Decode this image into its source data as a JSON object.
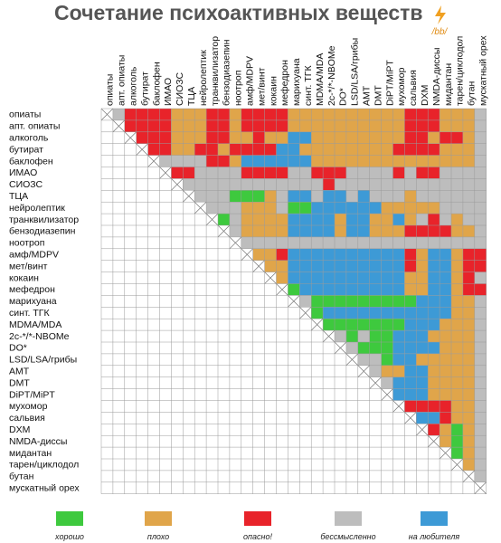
{
  "title": "Сочетание психоактивных веществ",
  "logo": "/bb/",
  "substances": [
    "опиаты",
    "апт. опиаты",
    "алкоголь",
    "бутират",
    "баклофен",
    "ИМАО",
    "СИОЗС",
    "ТЦА",
    "нейролептик",
    "транквилизатор",
    "бензодиазепин",
    "ноотроп",
    "амф/MDPV",
    "мет/винт",
    "кокаин",
    "мефедрон",
    "марихуана",
    "синт. ТГК",
    "MDMA/MDA",
    "2c-*/*-NBOMe",
    "DO*",
    "LSD/LSA/грибы",
    "AMT",
    "DMT",
    "DiPT/MiPT",
    "мухомор",
    "сальвия",
    "DXM",
    "NMDA-диссы",
    "мидантан",
    "тарен/циклодол",
    "бутан",
    "мускатный орех"
  ],
  "legend": [
    {
      "label": "хорошо",
      "color": "#3ec93e"
    },
    {
      "label": "плохо",
      "color": "#e0a54a"
    },
    {
      "label": "опасно!",
      "color": "#e8232a"
    },
    {
      "label": "бессмысленно",
      "color": "#bdbdbd"
    },
    {
      "label": "на любителя",
      "color": "#3d9ad6"
    }
  ],
  "matrix": [
    [
      3,
      2,
      2,
      2,
      2,
      1,
      1,
      1,
      2,
      2,
      1,
      2,
      2,
      2,
      2,
      1,
      1,
      1,
      1,
      1,
      1,
      1,
      1,
      1,
      1,
      2,
      2,
      2,
      1,
      1,
      1,
      3
    ],
    [
      2,
      2,
      2,
      2,
      1,
      1,
      1,
      2,
      2,
      1,
      2,
      2,
      2,
      2,
      1,
      1,
      1,
      1,
      1,
      1,
      1,
      1,
      1,
      1,
      2,
      2,
      2,
      1,
      1,
      1,
      3
    ],
    [
      2,
      2,
      2,
      1,
      1,
      1,
      2,
      2,
      1,
      1,
      2,
      1,
      1,
      4,
      4,
      1,
      1,
      1,
      1,
      1,
      1,
      1,
      1,
      2,
      2,
      1,
      2,
      2,
      1,
      3
    ],
    [
      2,
      2,
      1,
      1,
      2,
      2,
      1,
      2,
      2,
      2,
      2,
      4,
      4,
      1,
      1,
      1,
      1,
      1,
      1,
      1,
      1,
      2,
      2,
      2,
      2,
      1,
      1,
      1,
      3
    ],
    [
      3,
      3,
      3,
      3,
      2,
      2,
      1,
      4,
      4,
      4,
      4,
      4,
      4,
      1,
      1,
      1,
      1,
      1,
      1,
      1,
      1,
      1,
      1,
      1,
      1,
      1,
      1,
      3
    ],
    [
      2,
      2,
      3,
      3,
      3,
      3,
      2,
      2,
      2,
      2,
      3,
      3,
      2,
      2,
      2,
      3,
      3,
      3,
      3,
      2,
      3,
      2,
      2,
      3,
      3,
      3,
      3
    ],
    [
      3,
      3,
      3,
      3,
      3,
      3,
      3,
      3,
      3,
      3,
      3,
      3,
      2,
      3,
      3,
      3,
      3,
      3,
      3,
      3,
      3,
      3,
      3,
      3,
      3,
      3
    ],
    [
      3,
      3,
      3,
      0,
      0,
      0,
      1,
      3,
      4,
      4,
      3,
      4,
      4,
      3,
      4,
      3,
      3,
      3,
      1,
      3,
      3,
      3,
      3,
      3,
      3
    ],
    [
      3,
      3,
      3,
      1,
      1,
      1,
      3,
      0,
      0,
      4,
      4,
      4,
      4,
      4,
      4,
      1,
      1,
      1,
      1,
      1,
      3,
      3,
      3,
      3
    ],
    [
      0,
      3,
      1,
      1,
      1,
      1,
      4,
      4,
      4,
      4,
      1,
      4,
      4,
      1,
      1,
      4,
      1,
      3,
      2,
      3,
      1,
      3,
      3
    ],
    [
      3,
      1,
      1,
      1,
      1,
      4,
      4,
      4,
      4,
      1,
      4,
      4,
      1,
      1,
      1,
      2,
      2,
      2,
      2,
      1,
      1,
      3
    ],
    [
      3,
      3,
      3,
      3,
      3,
      3,
      3,
      3,
      3,
      3,
      3,
      3,
      3,
      3,
      3,
      3,
      3,
      3,
      3,
      3,
      3
    ],
    [
      1,
      1,
      2,
      4,
      4,
      4,
      4,
      4,
      4,
      4,
      4,
      4,
      4,
      2,
      1,
      4,
      4,
      1,
      2,
      2
    ],
    [
      1,
      1,
      4,
      4,
      4,
      4,
      4,
      4,
      4,
      4,
      4,
      4,
      2,
      1,
      4,
      4,
      1,
      2,
      2
    ],
    [
      1,
      4,
      4,
      4,
      4,
      4,
      4,
      4,
      4,
      4,
      4,
      1,
      1,
      4,
      4,
      1,
      2,
      3
    ],
    [
      0,
      4,
      4,
      4,
      4,
      4,
      4,
      4,
      4,
      4,
      1,
      1,
      4,
      4,
      1,
      2,
      2
    ],
    [
      3,
      0,
      0,
      0,
      0,
      0,
      0,
      0,
      0,
      0,
      4,
      4,
      4,
      1,
      1,
      3
    ],
    [
      0,
      4,
      4,
      4,
      4,
      4,
      4,
      4,
      4,
      4,
      4,
      4,
      1,
      1,
      3
    ],
    [
      0,
      0,
      0,
      0,
      0,
      0,
      0,
      4,
      4,
      4,
      1,
      1,
      1,
      3
    ],
    [
      3,
      0,
      3,
      0,
      0,
      4,
      4,
      4,
      1,
      1,
      1,
      1,
      3
    ],
    [
      3,
      0,
      0,
      0,
      4,
      4,
      4,
      4,
      1,
      1,
      1,
      3
    ],
    [
      3,
      3,
      0,
      4,
      4,
      1,
      1,
      1,
      1,
      1,
      3
    ],
    [
      3,
      1,
      1,
      4,
      4,
      1,
      1,
      1,
      1,
      3
    ],
    [
      3,
      4,
      4,
      4,
      1,
      1,
      1,
      1,
      3
    ],
    [
      4,
      4,
      4,
      1,
      1,
      1,
      1,
      3
    ],
    [
      2,
      2,
      2,
      2,
      1,
      1,
      3
    ],
    [
      4,
      4,
      2,
      1,
      1,
      3
    ],
    [
      2,
      1,
      0,
      1,
      3
    ],
    [
      1,
      0,
      1,
      3
    ],
    [
      0,
      1,
      3
    ],
    [
      1,
      3
    ],
    [
      3
    ],
    []
  ]
}
